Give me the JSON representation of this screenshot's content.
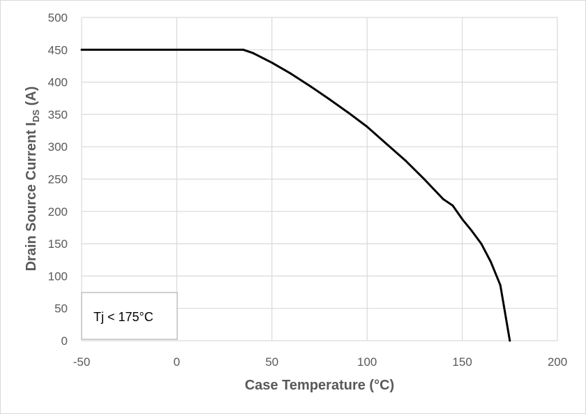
{
  "chart_data": {
    "type": "line",
    "title": "",
    "xlabel": "Case Temperature (°C)",
    "ylabel": {
      "main": "Drain Source Current I",
      "subscript": "DS",
      "unit": " (A)"
    },
    "xlim": [
      -50,
      200
    ],
    "ylim": [
      0,
      500
    ],
    "x_ticks": [
      -50,
      0,
      50,
      100,
      150,
      200
    ],
    "y_ticks": [
      0,
      50,
      100,
      150,
      200,
      250,
      300,
      350,
      400,
      450,
      500
    ],
    "grid": true,
    "annotation": "Tj < 175°C",
    "series": [
      {
        "color": "#000000",
        "x": [
          -50,
          35,
          40,
          50,
          60,
          70,
          80,
          90,
          100,
          110,
          120,
          130,
          140,
          145,
          150,
          155,
          160,
          165,
          170,
          175
        ],
        "y": [
          450,
          450,
          445,
          430,
          413,
          394,
          374,
          353,
          331,
          305,
          279,
          250,
          219,
          209,
          188,
          170,
          150,
          122,
          86,
          0
        ]
      }
    ]
  }
}
